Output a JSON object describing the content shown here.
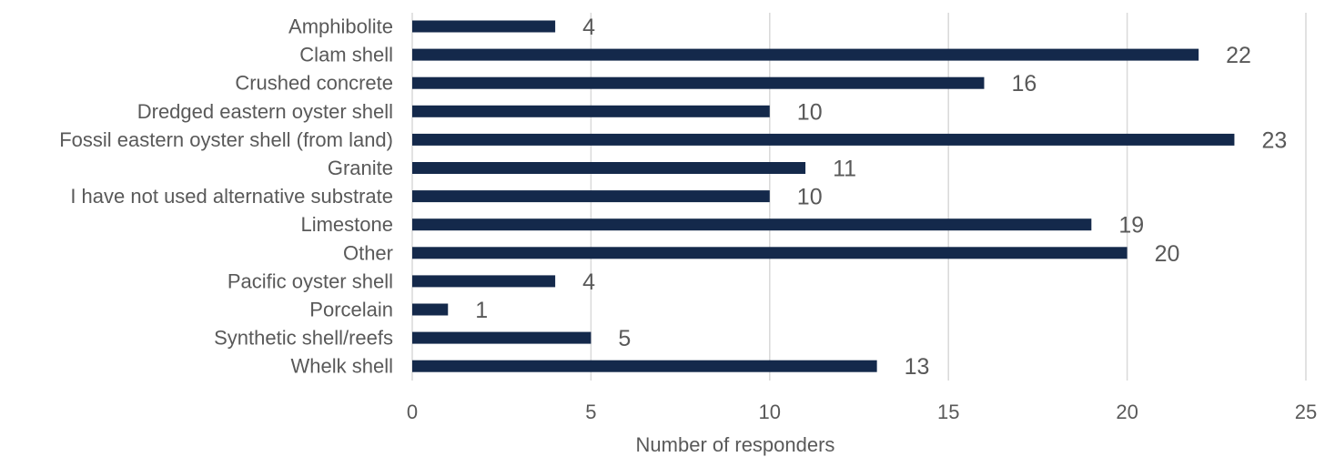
{
  "chart_data": {
    "type": "bar",
    "orientation": "horizontal",
    "categories": [
      "Amphibolite",
      "Clam shell",
      "Crushed concrete",
      "Dredged eastern oyster shell",
      "Fossil eastern oyster shell (from land)",
      "Granite",
      "I have not used alternative substrate",
      "Limestone",
      "Other",
      "Pacific oyster shell",
      "Porcelain",
      "Synthetic shell/reefs",
      "Whelk shell"
    ],
    "values": [
      4,
      22,
      16,
      10,
      23,
      11,
      10,
      19,
      20,
      4,
      1,
      5,
      13
    ],
    "xlabel": "Number of responders",
    "ylabel": "",
    "xlim": [
      0,
      25
    ],
    "xticks": [
      0,
      5,
      10,
      15,
      20,
      25
    ],
    "grid": "vertical",
    "data_labels": true,
    "bar_color": "#14294b",
    "grid_color": "#d9d9d9",
    "text_color": "#595959"
  }
}
